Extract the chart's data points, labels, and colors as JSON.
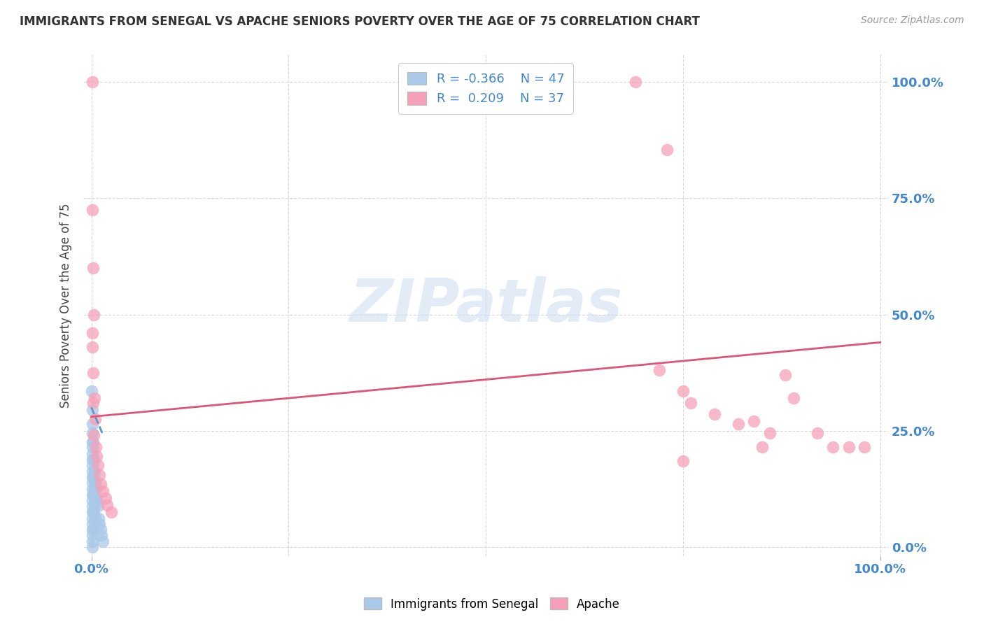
{
  "title": "IMMIGRANTS FROM SENEGAL VS APACHE SENIORS POVERTY OVER THE AGE OF 75 CORRELATION CHART",
  "source": "Source: ZipAtlas.com",
  "ylabel_label": "Seniors Poverty Over the Age of 75",
  "legend_blue_label": "Immigrants from Senegal",
  "legend_pink_label": "Apache",
  "blue_R": "-0.366",
  "blue_N": "47",
  "pink_R": "0.209",
  "pink_N": "37",
  "blue_color": "#aac8e8",
  "pink_color": "#f5a0b8",
  "blue_line_color": "#5599cc",
  "pink_line_color": "#dd5577",
  "blue_scatter": [
    [
      0.0,
      0.335
    ],
    [
      0.001,
      0.295
    ],
    [
      0.001,
      0.265
    ],
    [
      0.001,
      0.245
    ],
    [
      0.001,
      0.225
    ],
    [
      0.001,
      0.215
    ],
    [
      0.001,
      0.2
    ],
    [
      0.001,
      0.188
    ],
    [
      0.001,
      0.175
    ],
    [
      0.001,
      0.162
    ],
    [
      0.001,
      0.15
    ],
    [
      0.001,
      0.138
    ],
    [
      0.001,
      0.125
    ],
    [
      0.001,
      0.112
    ],
    [
      0.001,
      0.1
    ],
    [
      0.001,
      0.088
    ],
    [
      0.001,
      0.075
    ],
    [
      0.001,
      0.062
    ],
    [
      0.001,
      0.05
    ],
    [
      0.001,
      0.038
    ],
    [
      0.001,
      0.025
    ],
    [
      0.001,
      0.012
    ],
    [
      0.001,
      0.0
    ],
    [
      0.002,
      0.225
    ],
    [
      0.002,
      0.188
    ],
    [
      0.002,
      0.15
    ],
    [
      0.002,
      0.112
    ],
    [
      0.002,
      0.075
    ],
    [
      0.002,
      0.038
    ],
    [
      0.003,
      0.188
    ],
    [
      0.003,
      0.15
    ],
    [
      0.003,
      0.112
    ],
    [
      0.003,
      0.075
    ],
    [
      0.004,
      0.162
    ],
    [
      0.004,
      0.125
    ],
    [
      0.004,
      0.088
    ],
    [
      0.005,
      0.138
    ],
    [
      0.005,
      0.1
    ],
    [
      0.005,
      0.062
    ],
    [
      0.006,
      0.125
    ],
    [
      0.007,
      0.1
    ],
    [
      0.008,
      0.088
    ],
    [
      0.009,
      0.062
    ],
    [
      0.01,
      0.05
    ],
    [
      0.012,
      0.038
    ],
    [
      0.013,
      0.025
    ],
    [
      0.015,
      0.012
    ]
  ],
  "pink_scatter": [
    [
      0.001,
      1.0
    ],
    [
      0.001,
      0.725
    ],
    [
      0.002,
      0.6
    ],
    [
      0.003,
      0.5
    ],
    [
      0.001,
      0.46
    ],
    [
      0.002,
      0.375
    ],
    [
      0.004,
      0.32
    ],
    [
      0.005,
      0.275
    ],
    [
      0.003,
      0.24
    ],
    [
      0.006,
      0.215
    ],
    [
      0.007,
      0.195
    ],
    [
      0.008,
      0.175
    ],
    [
      0.01,
      0.155
    ],
    [
      0.012,
      0.135
    ],
    [
      0.015,
      0.12
    ],
    [
      0.018,
      0.105
    ],
    [
      0.02,
      0.09
    ],
    [
      0.025,
      0.075
    ],
    [
      0.001,
      0.43
    ],
    [
      0.002,
      0.31
    ],
    [
      0.69,
      1.0
    ],
    [
      0.73,
      0.855
    ],
    [
      0.72,
      0.38
    ],
    [
      0.75,
      0.335
    ],
    [
      0.76,
      0.31
    ],
    [
      0.79,
      0.285
    ],
    [
      0.82,
      0.265
    ],
    [
      0.84,
      0.27
    ],
    [
      0.86,
      0.245
    ],
    [
      0.88,
      0.37
    ],
    [
      0.89,
      0.32
    ],
    [
      0.92,
      0.245
    ],
    [
      0.94,
      0.215
    ],
    [
      0.96,
      0.215
    ],
    [
      0.98,
      0.215
    ],
    [
      0.85,
      0.215
    ],
    [
      0.75,
      0.185
    ]
  ],
  "blue_trendline_x": [
    0.0,
    0.015
  ],
  "blue_trendline_y": [
    0.3,
    0.24
  ],
  "pink_trendline_x": [
    0.0,
    1.0
  ],
  "pink_trendline_y": [
    0.28,
    0.44
  ],
  "watermark": "ZIPatlas",
  "bg_color": "#ffffff",
  "grid_color": "#d8d8d8",
  "xlim": [
    -0.01,
    1.01
  ],
  "ylim": [
    -0.02,
    1.06
  ]
}
